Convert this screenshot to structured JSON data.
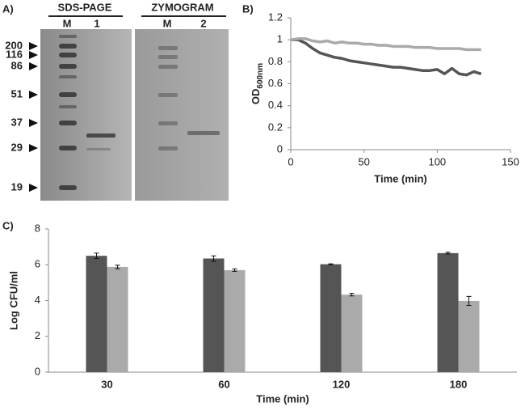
{
  "gel": {
    "label": "A)",
    "headers": [
      "SDS-PAGE",
      "ZYMOGRAM"
    ],
    "lanes": [
      "M",
      "1",
      "M",
      "2"
    ],
    "markers": [
      "200",
      "116",
      "86",
      "51",
      "37",
      "29",
      "19"
    ]
  },
  "chart_data": [
    {
      "type": "line",
      "label": "B)",
      "xlabel": "Time (min)",
      "ylabel": "OD",
      "ylabel_sub": "600nm",
      "x": [
        0,
        5,
        10,
        15,
        20,
        25,
        30,
        35,
        40,
        45,
        50,
        55,
        60,
        65,
        70,
        75,
        80,
        85,
        90,
        95,
        100,
        105,
        110,
        115,
        120,
        125,
        130
      ],
      "series": [
        {
          "color": "#555555",
          "values": [
            1.0,
            1.0,
            0.97,
            0.92,
            0.88,
            0.86,
            0.84,
            0.83,
            0.81,
            0.8,
            0.79,
            0.78,
            0.77,
            0.76,
            0.75,
            0.75,
            0.74,
            0.73,
            0.72,
            0.72,
            0.73,
            0.69,
            0.74,
            0.69,
            0.68,
            0.71,
            0.69
          ]
        },
        {
          "color": "#aaaaaa",
          "values": [
            1.0,
            1.01,
            1.01,
            0.99,
            0.98,
            0.99,
            0.97,
            0.98,
            0.97,
            0.97,
            0.96,
            0.96,
            0.95,
            0.95,
            0.94,
            0.94,
            0.94,
            0.93,
            0.93,
            0.93,
            0.92,
            0.92,
            0.92,
            0.92,
            0.91,
            0.91,
            0.91
          ]
        }
      ],
      "xlim": [
        0,
        150
      ],
      "xticks": [
        0,
        50,
        100,
        150
      ],
      "ylim": [
        0,
        1.2
      ],
      "yticks": [
        0,
        0.2,
        0.4,
        0.6,
        0.8,
        1,
        1.2
      ]
    },
    {
      "type": "bar",
      "label": "C)",
      "xlabel": "Time (min)",
      "ylabel": "Log CFU/ml",
      "categories": [
        "30",
        "60",
        "120",
        "180"
      ],
      "series": [
        {
          "color": "#555555",
          "values": [
            6.5,
            6.35,
            6.03,
            6.65
          ],
          "errors": [
            0.15,
            0.15,
            0.02,
            0.05
          ]
        },
        {
          "color": "#aaaaaa",
          "values": [
            5.88,
            5.7,
            4.33,
            3.98
          ],
          "errors": [
            0.1,
            0.07,
            0.07,
            0.25
          ]
        }
      ],
      "ylim": [
        0,
        8
      ],
      "yticks": [
        0,
        2,
        4,
        6,
        8
      ]
    }
  ]
}
